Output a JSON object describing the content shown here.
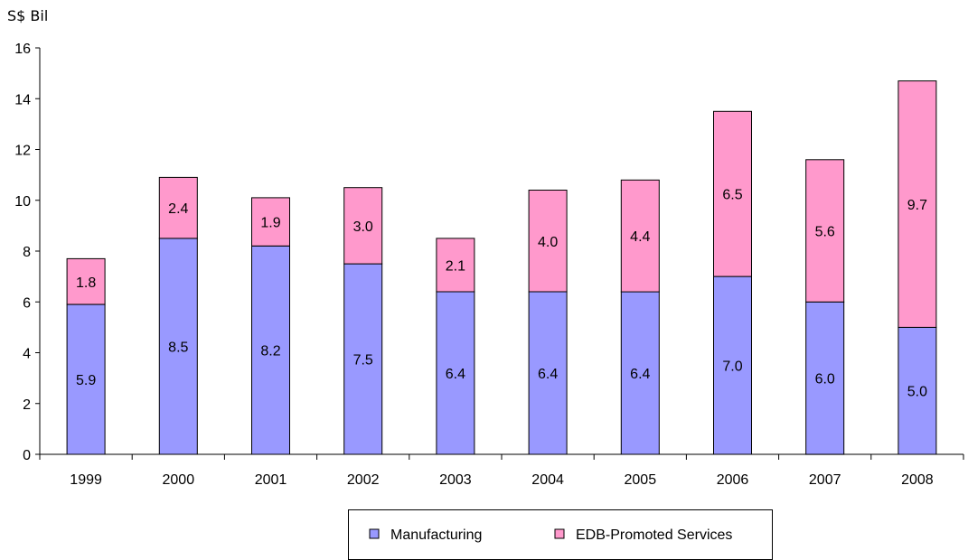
{
  "chart_data": {
    "type": "bar",
    "stacked": true,
    "unit_label": "S$ Bil",
    "categories": [
      "1999",
      "2000",
      "2001",
      "2002",
      "2003",
      "2004",
      "2005",
      "2006",
      "2007",
      "2008"
    ],
    "series": [
      {
        "name": "Manufacturing",
        "color": "#9999ff",
        "values": [
          5.9,
          8.5,
          8.2,
          7.5,
          6.4,
          6.4,
          6.4,
          7.0,
          6.0,
          5.0
        ],
        "labels": [
          "5.9",
          "8.5",
          "8.2",
          "7.5",
          "6.4",
          "6.4",
          "6.4",
          "7.0",
          "6.0",
          "5.0"
        ]
      },
      {
        "name": "EDB-Promoted Services",
        "color": "#ff99cc",
        "values": [
          1.8,
          2.4,
          1.9,
          3.0,
          2.1,
          4.0,
          4.4,
          6.5,
          5.6,
          9.7
        ],
        "labels": [
          "1.8",
          "2.4",
          "1.9",
          "3.0",
          "2.1",
          "4.0",
          "4.4",
          "6.5",
          "5.6",
          "9.7"
        ]
      }
    ],
    "ylim": [
      0,
      16
    ],
    "yticks": [
      "0",
      "2",
      "4",
      "6",
      "8",
      "10",
      "12",
      "14",
      "16"
    ],
    "legend_position": "bottom",
    "grid": false
  }
}
